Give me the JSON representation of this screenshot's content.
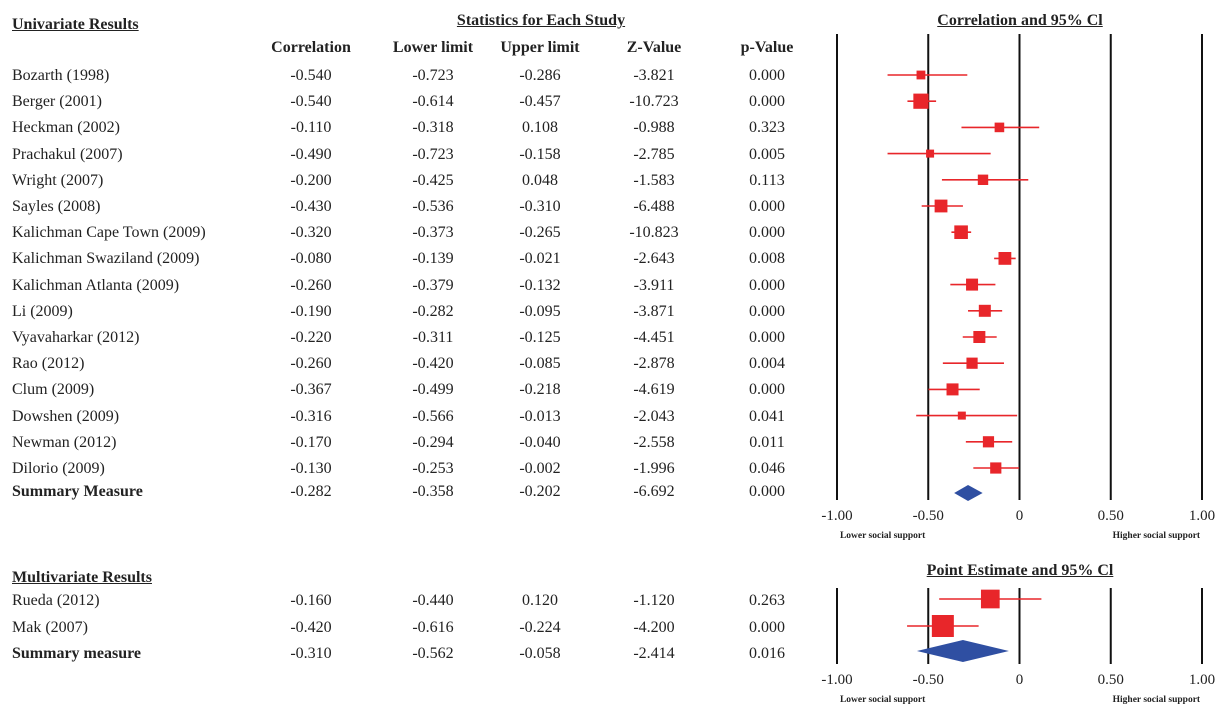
{
  "univariate": {
    "section_title": "Univariate Results",
    "stats_title": "Statistics for Each Study",
    "plot_title": "Correlation and 95% Cl",
    "columns": [
      "Correlation",
      "Lower limit",
      "Upper limit",
      "Z-Value",
      "p-Value"
    ],
    "rows": [
      {
        "study": "Bozarth (1998)",
        "r": "-0.540",
        "lo": "-0.723",
        "hi": "-0.286",
        "z": "-3.821",
        "p": "0.000"
      },
      {
        "study": "Berger (2001)",
        "r": "-0.540",
        "lo": "-0.614",
        "hi": "-0.457",
        "z": "-10.723",
        "p": "0.000"
      },
      {
        "study": "Heckman (2002)",
        "r": "-0.110",
        "lo": "-0.318",
        "hi": "0.108",
        "z": "-0.988",
        "p": "0.323"
      },
      {
        "study": "Prachakul (2007)",
        "r": "-0.490",
        "lo": "-0.723",
        "hi": "-0.158",
        "z": "-2.785",
        "p": "0.005"
      },
      {
        "study": "Wright (2007)",
        "r": "-0.200",
        "lo": "-0.425",
        "hi": "0.048",
        "z": "-1.583",
        "p": "0.113"
      },
      {
        "study": "Sayles (2008)",
        "r": "-0.430",
        "lo": "-0.536",
        "hi": "-0.310",
        "z": "-6.488",
        "p": "0.000"
      },
      {
        "study": "Kalichman Cape Town (2009)",
        "r": "-0.320",
        "lo": "-0.373",
        "hi": "-0.265",
        "z": "-10.823",
        "p": "0.000"
      },
      {
        "study": "Kalichman Swaziland (2009)",
        "r": "-0.080",
        "lo": "-0.139",
        "hi": "-0.021",
        "z": "-2.643",
        "p": "0.008"
      },
      {
        "study": "Kalichman Atlanta (2009)",
        "r": "-0.260",
        "lo": "-0.379",
        "hi": "-0.132",
        "z": "-3.911",
        "p": "0.000"
      },
      {
        "study": "Li (2009)",
        "r": "-0.190",
        "lo": "-0.282",
        "hi": "-0.095",
        "z": "-3.871",
        "p": "0.000"
      },
      {
        "study": "Vyavaharkar (2012)",
        "r": "-0.220",
        "lo": "-0.311",
        "hi": "-0.125",
        "z": "-4.451",
        "p": "0.000"
      },
      {
        "study": "Rao (2012)",
        "r": "-0.260",
        "lo": "-0.420",
        "hi": "-0.085",
        "z": "-2.878",
        "p": "0.004"
      },
      {
        "study": "Clum (2009)",
        "r": "-0.367",
        "lo": "-0.499",
        "hi": "-0.218",
        "z": "-4.619",
        "p": "0.000"
      },
      {
        "study": "Dowshen (2009)",
        "r": "-0.316",
        "lo": "-0.566",
        "hi": "-0.013",
        "z": "-2.043",
        "p": "0.041"
      },
      {
        "study": "Newman (2012)",
        "r": "-0.170",
        "lo": "-0.294",
        "hi": "-0.040",
        "z": "-2.558",
        "p": "0.011"
      },
      {
        "study": "Dilorio (2009)",
        "r": "-0.130",
        "lo": "-0.253",
        "hi": "-0.002",
        "z": "-1.996",
        "p": "0.046"
      }
    ],
    "summary": {
      "study": "Summary Measure",
      "r": "-0.282",
      "lo": "-0.358",
      "hi": "-0.202",
      "z": "-6.692",
      "p": "0.000"
    },
    "axis_ticks": [
      "-1.00",
      "-0.50",
      "0",
      "0.50",
      "1.00"
    ],
    "left_label": "Lower social support",
    "right_label": "Higher social support"
  },
  "multivariate": {
    "section_title": "Multivariate Results",
    "plot_title": "Point Estimate and 95% Cl",
    "rows": [
      {
        "study": "Rueda (2012)",
        "r": "-0.160",
        "lo": "-0.440",
        "hi": "0.120",
        "z": "-1.120",
        "p": "0.263"
      },
      {
        "study": "Mak (2007)",
        "r": "-0.420",
        "lo": "-0.616",
        "hi": "-0.224",
        "z": "-4.200",
        "p": "0.000"
      }
    ],
    "summary": {
      "study": "Summary measure",
      "r": "-0.310",
      "lo": "-0.562",
      "hi": "-0.058",
      "z": "-2.414",
      "p": "0.016"
    },
    "axis_ticks": [
      "-1.00",
      "-0.50",
      "0",
      "0.50",
      "1.00"
    ],
    "left_label": "Lower social support",
    "right_label": "Higher social support"
  },
  "chart_data": [
    {
      "type": "forest",
      "title": "Correlation and 95% Cl",
      "xlim": [
        -1.0,
        1.0
      ],
      "x_ticks": [
        -1.0,
        -0.5,
        0,
        0.5,
        1.0
      ],
      "marker_color": "#e8262a",
      "summary_color": "#2f4fa2",
      "studies": [
        {
          "r": -0.54,
          "lo": -0.723,
          "hi": -0.286,
          "w": 0.55
        },
        {
          "r": -0.54,
          "lo": -0.614,
          "hi": -0.457,
          "w": 0.95
        },
        {
          "r": -0.11,
          "lo": -0.318,
          "hi": 0.108,
          "w": 0.6
        },
        {
          "r": -0.49,
          "lo": -0.723,
          "hi": -0.158,
          "w": 0.5
        },
        {
          "r": -0.2,
          "lo": -0.425,
          "hi": 0.048,
          "w": 0.65
        },
        {
          "r": -0.43,
          "lo": -0.536,
          "hi": -0.31,
          "w": 0.8
        },
        {
          "r": -0.32,
          "lo": -0.373,
          "hi": -0.265,
          "w": 0.85
        },
        {
          "r": -0.08,
          "lo": -0.139,
          "hi": -0.021,
          "w": 0.8
        },
        {
          "r": -0.26,
          "lo": -0.379,
          "hi": -0.132,
          "w": 0.75
        },
        {
          "r": -0.19,
          "lo": -0.282,
          "hi": -0.095,
          "w": 0.75
        },
        {
          "r": -0.22,
          "lo": -0.311,
          "hi": -0.125,
          "w": 0.75
        },
        {
          "r": -0.26,
          "lo": -0.42,
          "hi": -0.085,
          "w": 0.7
        },
        {
          "r": -0.367,
          "lo": -0.499,
          "hi": -0.218,
          "w": 0.75
        },
        {
          "r": -0.316,
          "lo": -0.566,
          "hi": -0.013,
          "w": 0.5
        },
        {
          "r": -0.17,
          "lo": -0.294,
          "hi": -0.04,
          "w": 0.7
        },
        {
          "r": -0.13,
          "lo": -0.253,
          "hi": -0.002,
          "w": 0.7
        }
      ],
      "summary": {
        "r": -0.282,
        "lo": -0.358,
        "hi": -0.202
      },
      "left_label": "Lower social support",
      "right_label": "Higher social support"
    },
    {
      "type": "forest",
      "title": "Point Estimate and 95% Cl",
      "xlim": [
        -1.0,
        1.0
      ],
      "x_ticks": [
        -1.0,
        -0.5,
        0,
        0.5,
        1.0
      ],
      "marker_color": "#e8262a",
      "summary_color": "#2f4fa2",
      "studies": [
        {
          "r": -0.16,
          "lo": -0.44,
          "hi": 0.12,
          "w": 0.85
        },
        {
          "r": -0.42,
          "lo": -0.616,
          "hi": -0.224,
          "w": 1.0
        }
      ],
      "summary": {
        "r": -0.31,
        "lo": -0.562,
        "hi": -0.058
      },
      "left_label": "Lower social support",
      "right_label": "Higher social support"
    }
  ]
}
